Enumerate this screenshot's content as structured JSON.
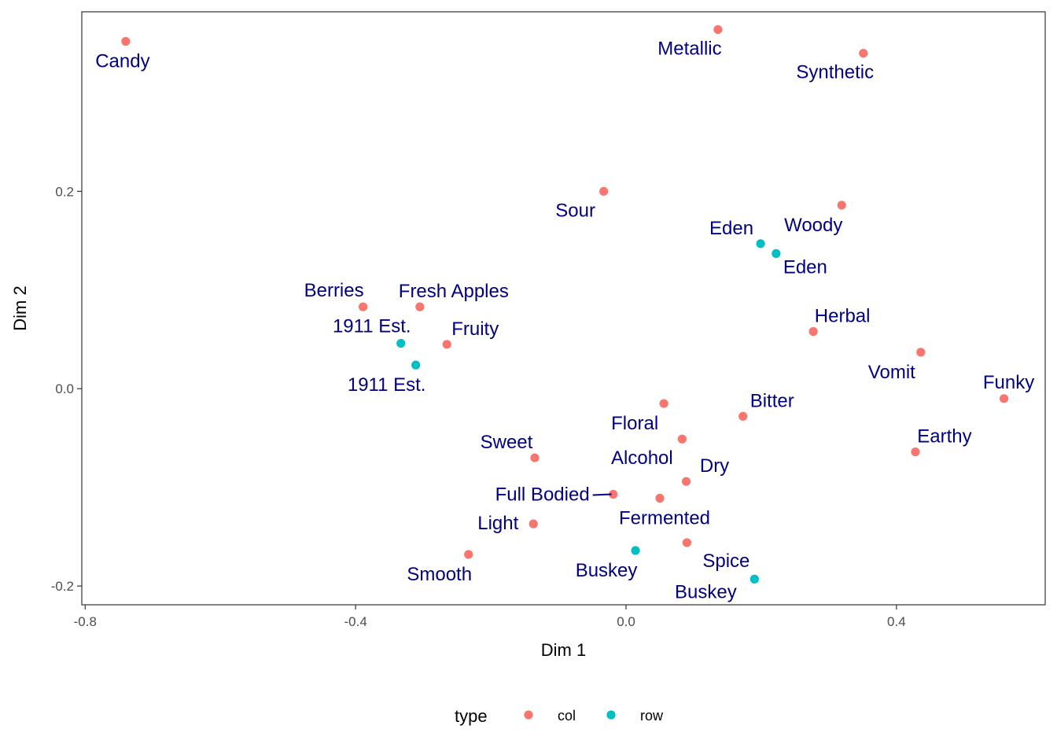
{
  "chart_data": {
    "type": "scatter",
    "title": "",
    "xlabel": "Dim 1",
    "ylabel": "Dim 2",
    "xlim": [
      -0.805,
      0.62
    ],
    "ylim": [
      -0.219,
      0.382
    ],
    "xticks": [
      {
        "value": -0.8,
        "label": "-0.8"
      },
      {
        "value": -0.4,
        "label": "-0.4"
      },
      {
        "value": 0.0,
        "label": "0.0"
      },
      {
        "value": 0.4,
        "label": "0.4"
      }
    ],
    "yticks": [
      {
        "value": 0.2,
        "label": "0.2"
      },
      {
        "value": 0.0,
        "label": "0.0"
      },
      {
        "value": -0.2,
        "label": "-0.2"
      }
    ],
    "grid": false,
    "legend": {
      "title": "type",
      "position": "bottom",
      "entries": [
        "col",
        "row"
      ]
    },
    "colors": {
      "col": "#F8766D",
      "row": "#00BFC4",
      "label": "#000080"
    },
    "points": [
      {
        "label": "Candy",
        "type": "col",
        "x": -0.74,
        "y": 0.352
      },
      {
        "label": "Metallic",
        "type": "col",
        "x": 0.136,
        "y": 0.364
      },
      {
        "label": "Synthetic",
        "type": "col",
        "x": 0.351,
        "y": 0.34
      },
      {
        "label": "Sour",
        "type": "col",
        "x": -0.033,
        "y": 0.2
      },
      {
        "label": "Woody",
        "type": "col",
        "x": 0.319,
        "y": 0.186
      },
      {
        "label": "Eden",
        "type": "row",
        "x": 0.199,
        "y": 0.147
      },
      {
        "label": "Eden",
        "type": "row",
        "x": 0.222,
        "y": 0.137
      },
      {
        "label": "Berries",
        "type": "col",
        "x": -0.389,
        "y": 0.083
      },
      {
        "label": "Fresh Apples",
        "type": "col",
        "x": -0.305,
        "y": 0.083
      },
      {
        "label": "Herbal",
        "type": "col",
        "x": 0.277,
        "y": 0.058
      },
      {
        "label": "1911 Est.",
        "type": "row",
        "x": -0.333,
        "y": 0.046
      },
      {
        "label": "Fruity",
        "type": "col",
        "x": -0.265,
        "y": 0.045
      },
      {
        "label": "1911 Est.",
        "type": "row",
        "x": -0.311,
        "y": 0.024
      },
      {
        "label": "Vomit",
        "type": "col",
        "x": 0.436,
        "y": 0.037
      },
      {
        "label": "Funky",
        "type": "col",
        "x": 0.559,
        "y": -0.01
      },
      {
        "label": "Floral",
        "type": "col",
        "x": 0.056,
        "y": -0.015
      },
      {
        "label": "Bitter",
        "type": "col",
        "x": 0.173,
        "y": -0.028
      },
      {
        "label": "Alcohol",
        "type": "col",
        "x": 0.083,
        "y": -0.051
      },
      {
        "label": "Earthy",
        "type": "col",
        "x": 0.428,
        "y": -0.064
      },
      {
        "label": "Sweet",
        "type": "col",
        "x": -0.135,
        "y": -0.07
      },
      {
        "label": "Dry",
        "type": "col",
        "x": 0.089,
        "y": -0.094
      },
      {
        "label": "Full Bodied",
        "type": "col",
        "x": -0.019,
        "y": -0.107
      },
      {
        "label": "Fermented",
        "type": "col",
        "x": 0.05,
        "y": -0.111
      },
      {
        "label": "Light",
        "type": "col",
        "x": -0.137,
        "y": -0.137
      },
      {
        "label": "Spice",
        "type": "col",
        "x": 0.09,
        "y": -0.156
      },
      {
        "label": "Buskey",
        "type": "row",
        "x": 0.014,
        "y": -0.164
      },
      {
        "label": "Smooth",
        "type": "col",
        "x": -0.233,
        "y": -0.168
      },
      {
        "label": "Buskey",
        "type": "row",
        "x": 0.19,
        "y": -0.193
      }
    ]
  }
}
